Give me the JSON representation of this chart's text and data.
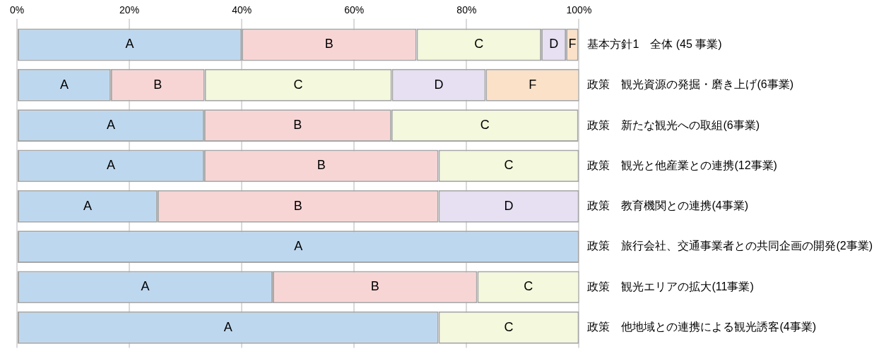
{
  "chart_data": {
    "type": "bar",
    "orientation": "horizontal",
    "stacked": true,
    "categories": [
      "基本方針1　全体 (45 事業)",
      "政策　観光資源の発掘・磨き上げ(6事業)",
      "政策　新たな観光への取組(6事業)",
      "政策　観光と他産業との連携(12事業)",
      "政策　教育機関との連携(4事業)",
      "政策　旅行会社、交通事業者との共同企画の開発(2事業)",
      "政策　観光エリアの拡大(11事業)",
      "政策　他地域との連携による観光誘客(4事業)"
    ],
    "series": [
      {
        "name": "A",
        "color": "#bdd7ee",
        "values": [
          40,
          16.7,
          33.3,
          33.3,
          25,
          100,
          45.5,
          75
        ]
      },
      {
        "name": "B",
        "color": "#f8d5d5",
        "values": [
          31.1,
          16.7,
          33.3,
          41.7,
          50,
          null,
          36.4,
          null
        ]
      },
      {
        "name": "C",
        "color": "#f4f8dc",
        "values": [
          22.2,
          33.3,
          33.3,
          25,
          null,
          null,
          18.2,
          25
        ]
      },
      {
        "name": "D",
        "color": "#e6e0f2",
        "values": [
          4.4,
          16.7,
          null,
          null,
          25,
          null,
          null,
          null
        ]
      },
      {
        "name": "F",
        "color": "#fbe1c8",
        "values": [
          2.2,
          16.7,
          null,
          null,
          null,
          null,
          null,
          null
        ]
      }
    ],
    "xlim": [
      0,
      100
    ],
    "xticks": [
      {
        "value": 0,
        "label": "0%"
      },
      {
        "value": 20,
        "label": "20%"
      },
      {
        "value": 40,
        "label": "40%"
      },
      {
        "value": 60,
        "label": "60%"
      },
      {
        "value": 80,
        "label": "80%"
      },
      {
        "value": 100,
        "label": "100%"
      }
    ],
    "grid": "x",
    "legend": false
  }
}
